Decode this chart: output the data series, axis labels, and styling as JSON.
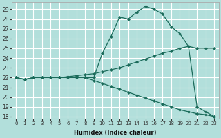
{
  "xlabel": "Humidex (Indice chaleur)",
  "background_color": "#b2dfdb",
  "grid_color": "#ffffff",
  "line_color": "#1a6b5a",
  "xlim": [
    -0.5,
    23.5
  ],
  "ylim": [
    17.8,
    29.7
  ],
  "yticks": [
    18,
    19,
    20,
    21,
    22,
    23,
    24,
    25,
    26,
    27,
    28,
    29
  ],
  "xticks": [
    0,
    1,
    2,
    3,
    4,
    5,
    6,
    7,
    8,
    9,
    10,
    11,
    12,
    13,
    14,
    15,
    16,
    17,
    18,
    19,
    20,
    21,
    22,
    23
  ],
  "line_humidex_x": [
    0,
    1,
    2,
    3,
    4,
    5,
    6,
    7,
    8,
    9,
    10,
    11,
    12,
    13,
    14,
    15,
    16,
    17,
    18,
    19,
    20,
    21,
    22,
    23
  ],
  "line_humidex_y": [
    22.0,
    21.8,
    22.0,
    22.0,
    22.0,
    22.0,
    22.0,
    22.0,
    22.0,
    22.0,
    24.5,
    26.2,
    28.2,
    28.0,
    28.7,
    29.3,
    29.0,
    28.5,
    27.2,
    26.5,
    25.2,
    19.0,
    18.5,
    18.0
  ],
  "line_max_x": [
    0,
    1,
    2,
    3,
    4,
    5,
    6,
    7,
    8,
    9,
    10,
    11,
    12,
    13,
    14,
    15,
    16,
    17,
    18,
    19,
    20,
    21,
    22,
    23
  ],
  "line_max_y": [
    22.0,
    21.8,
    22.0,
    22.0,
    22.0,
    22.0,
    22.1,
    22.2,
    22.3,
    22.4,
    22.6,
    22.8,
    23.0,
    23.3,
    23.6,
    23.9,
    24.2,
    24.5,
    24.7,
    25.0,
    25.2,
    25.0,
    25.0,
    25.0
  ],
  "line_min_x": [
    0,
    1,
    2,
    3,
    4,
    5,
    6,
    7,
    8,
    9,
    10,
    11,
    12,
    13,
    14,
    15,
    16,
    17,
    18,
    19,
    20,
    21,
    22,
    23
  ],
  "line_min_y": [
    22.0,
    21.8,
    22.0,
    22.0,
    22.0,
    22.0,
    22.0,
    22.0,
    22.0,
    21.7,
    21.4,
    21.1,
    20.8,
    20.5,
    20.2,
    19.9,
    19.6,
    19.3,
    19.0,
    18.7,
    18.5,
    18.3,
    18.2,
    18.0
  ]
}
